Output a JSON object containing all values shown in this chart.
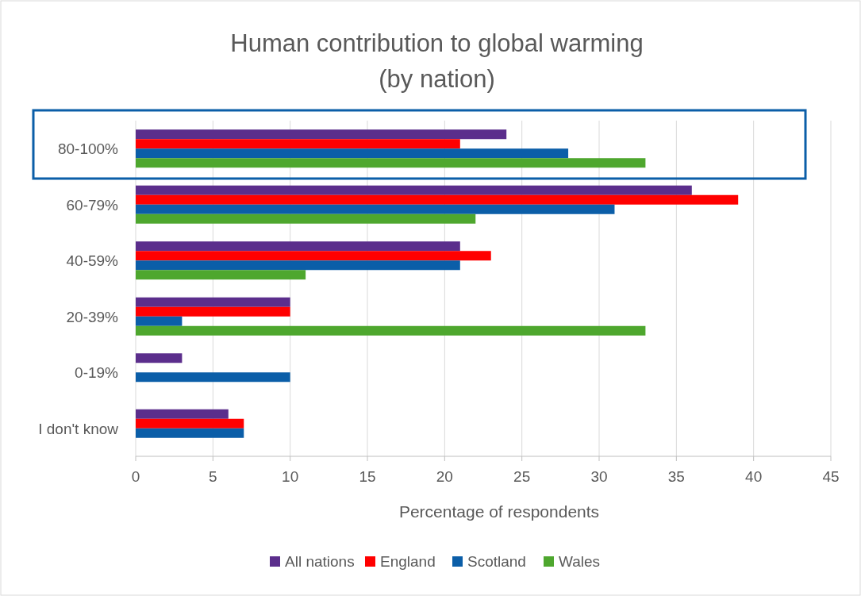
{
  "chart_data": {
    "type": "bar",
    "orientation": "horizontal",
    "title": "Human contribution to global warming\n(by nation)",
    "xlabel": "Percentage of respondents",
    "categories": [
      "80-100%",
      "60-79%",
      "40-59%",
      "20-39%",
      "0-19%",
      "I don't know"
    ],
    "series": [
      {
        "name": "All nations",
        "color": "#5b2e8c",
        "values": [
          24,
          36,
          21,
          10,
          3,
          6
        ]
      },
      {
        "name": "England",
        "color": "#ff0000",
        "values": [
          21,
          39,
          23,
          10,
          0,
          7
        ]
      },
      {
        "name": "Scotland",
        "color": "#0b5ea8",
        "values": [
          28,
          31,
          21,
          3,
          10,
          7
        ]
      },
      {
        "name": "Wales",
        "color": "#4ea72e",
        "values": [
          33,
          22,
          11,
          33,
          0,
          0
        ]
      }
    ],
    "xlim": [
      0,
      45
    ],
    "xticks": [
      0,
      5,
      10,
      15,
      20,
      25,
      30,
      35,
      40,
      45
    ],
    "grid": "x",
    "legend": "bottom"
  }
}
